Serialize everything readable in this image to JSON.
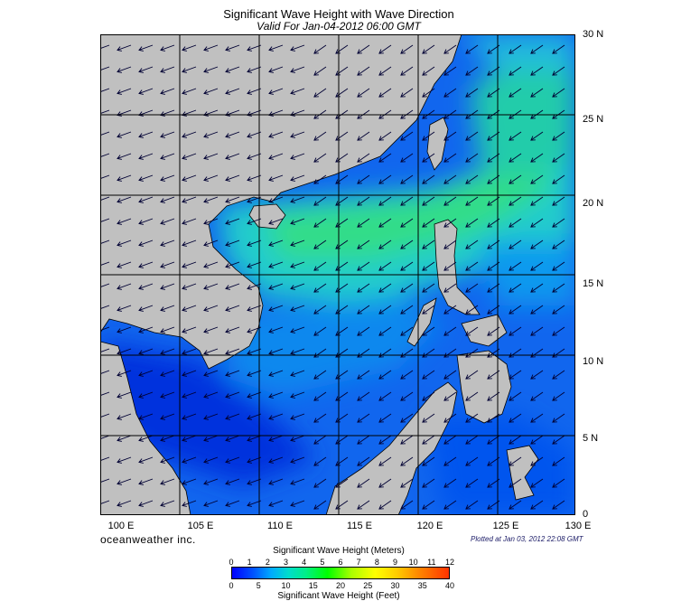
{
  "header": {
    "title": "Significant Wave Height with Wave Direction",
    "subtitle": "Valid For Jan-04-2012 06:00 GMT"
  },
  "map": {
    "lon_labels": [
      "100 E",
      "105 E",
      "110 E",
      "115 E",
      "120 E",
      "125 E",
      "130 E"
    ],
    "lat_labels": [
      "30 N",
      "25 N",
      "20 N",
      "15 N",
      "10 N",
      "5 N",
      "0"
    ],
    "colors": {
      "land": "#c0c0c0",
      "grid": "#000000",
      "arrow": "#000033"
    },
    "arrow_direction_note": "NE monsoon - arrows point toward southwest"
  },
  "footer": {
    "brand": "oceanweather inc.",
    "plotted": "Plotted at Jan 03, 2012 22:08 GMT"
  },
  "colorbar": {
    "title_meters": "Significant Wave Height (Meters)",
    "title_feet": "Significant Wave Height (Feet)",
    "ticks_meters": [
      "0",
      "1",
      "2",
      "3",
      "4",
      "5",
      "6",
      "7",
      "8",
      "9",
      "10",
      "11",
      "12"
    ],
    "ticks_feet": [
      "0",
      "5",
      "10",
      "15",
      "20",
      "25",
      "30",
      "35",
      "40"
    ]
  }
}
